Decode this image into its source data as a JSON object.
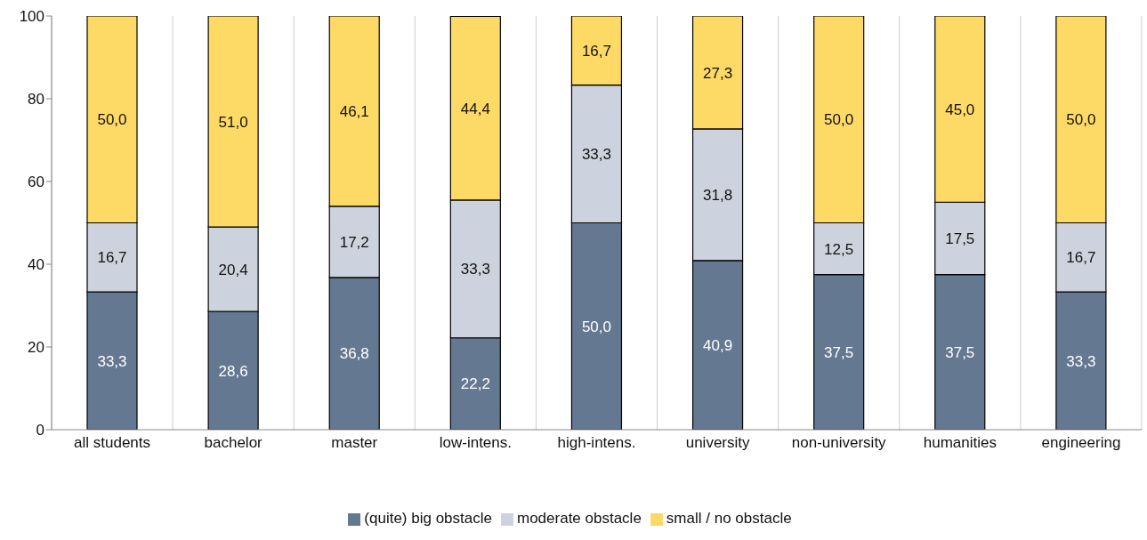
{
  "chart_data": {
    "type": "bar",
    "stacked": true,
    "categories": [
      "all students",
      "bachelor",
      "master",
      "low-intens.",
      "high-intens.",
      "university",
      "non-university",
      "humanities",
      "engineering"
    ],
    "series": [
      {
        "name": "(quite) big obstacle",
        "color": "#647892",
        "values": [
          33.3,
          28.6,
          36.8,
          22.2,
          50.0,
          40.9,
          37.5,
          37.5,
          33.3
        ],
        "value_labels": [
          "33,3",
          "28,6",
          "36,8",
          "22,2",
          "50,0",
          "40,9",
          "37,5",
          "37,5",
          "33,3"
        ]
      },
      {
        "name": "moderate obstacle",
        "color": "#cdd3de",
        "values": [
          16.7,
          20.4,
          17.2,
          33.3,
          33.3,
          31.8,
          12.5,
          17.5,
          16.7
        ],
        "value_labels": [
          "16,7",
          "20,4",
          "17,2",
          "33,3",
          "33,3",
          "31,8",
          "12,5",
          "17,5",
          "16,7"
        ]
      },
      {
        "name": "small / no obstacle",
        "color": "#fdd966",
        "values": [
          50.0,
          51.0,
          46.1,
          44.4,
          16.7,
          27.3,
          50.0,
          45.0,
          50.0
        ],
        "value_labels": [
          "50,0",
          "51,0",
          "46,1",
          "44,4",
          "16,7",
          "27,3",
          "50,0",
          "45,0",
          "50,0"
        ]
      }
    ],
    "ylim": [
      0,
      100
    ],
    "yticks": [
      0,
      20,
      40,
      60,
      80,
      100
    ],
    "grid": "x",
    "legend": "bottom"
  }
}
